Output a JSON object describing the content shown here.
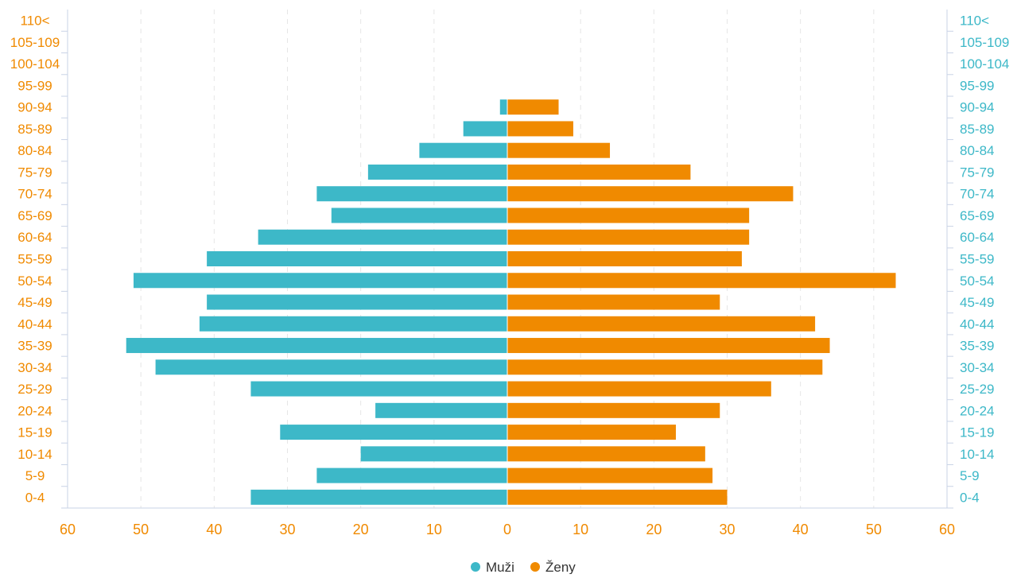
{
  "chart_data": {
    "type": "bar",
    "orientation": "horizontal-butterfly",
    "categories": [
      "0-4",
      "5-9",
      "10-14",
      "15-19",
      "20-24",
      "25-29",
      "30-34",
      "35-39",
      "40-44",
      "45-49",
      "50-54",
      "55-59",
      "60-64",
      "65-69",
      "70-74",
      "75-79",
      "80-84",
      "85-89",
      "90-94",
      "95-99",
      "100-104",
      "105-109",
      "110<"
    ],
    "series": [
      {
        "name": "Muži",
        "side": "left",
        "color": "#3db8c8",
        "values": [
          35,
          26,
          20,
          31,
          18,
          35,
          48,
          52,
          42,
          41,
          51,
          41,
          34,
          24,
          26,
          19,
          12,
          6,
          1,
          0,
          0,
          0,
          0
        ]
      },
      {
        "name": "Ženy",
        "side": "right",
        "color": "#f08a00",
        "values": [
          30,
          28,
          27,
          23,
          29,
          36,
          43,
          44,
          42,
          29,
          53,
          32,
          33,
          33,
          39,
          25,
          14,
          9,
          7,
          0,
          0,
          0,
          0
        ]
      }
    ],
    "x_ticks": [
      "60",
      "50",
      "40",
      "30",
      "20",
      "10",
      "0",
      "10",
      "20",
      "30",
      "40",
      "50",
      "60"
    ],
    "xlim": [
      -60,
      60
    ],
    "grid": "vertical dashed",
    "legend": "bottom-center",
    "colors": {
      "left_labels": "#f08a00",
      "right_labels": "#3db8c8",
      "axis": "#c9d3e6",
      "grid": "#e6e6e6"
    }
  }
}
